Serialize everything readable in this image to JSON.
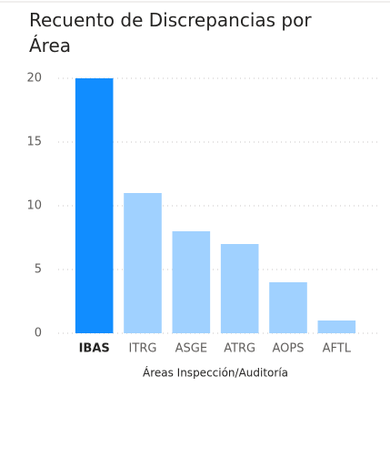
{
  "chart_data": {
    "type": "bar",
    "title": "Recuento de Discrepancias por Área",
    "x_label": "Áreas Inspección/Auditoría",
    "categories": [
      "IBAS",
      "ITRG",
      "ASGE",
      "ATRG",
      "AOPS",
      "AFTL"
    ],
    "values": [
      20,
      11,
      8,
      7,
      4,
      1
    ],
    "colors": [
      "#118dff",
      "#a0d1ff",
      "#a0d1ff",
      "#a0d1ff",
      "#a0d1ff",
      "#a0d1ff"
    ],
    "ylim": [
      0,
      20
    ],
    "yticks": [
      0,
      5,
      10,
      15,
      20
    ],
    "grid": true
  }
}
